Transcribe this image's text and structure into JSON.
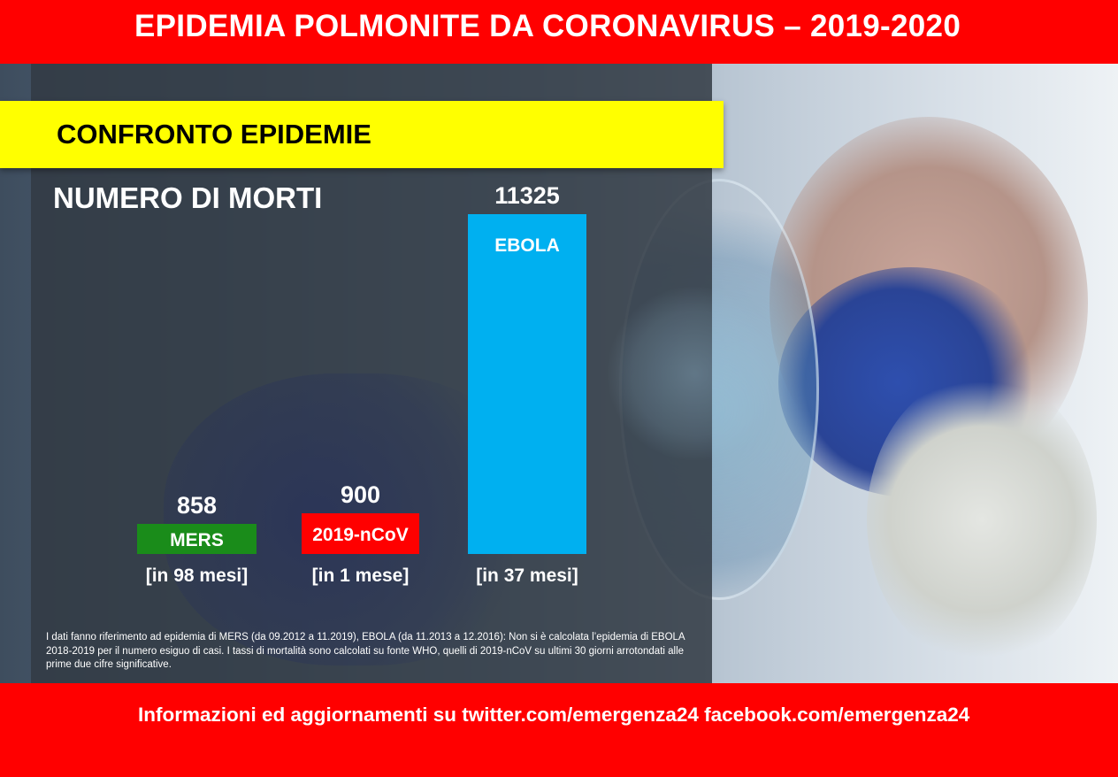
{
  "title": "EPIDEMIA POLMONITE DA CORONAVIRUS – 2019-2020",
  "subtitle": "CONFRONTO EPIDEMIE",
  "section_heading": "NUMERO DI MORTI",
  "footnote": "I dati fanno riferimento ad epidemia di MERS (da 09.2012 a 11.2019), EBOLA (da 11.2013 a 12.2016): Non si è calcolata l’epidemia di EBOLA 2018-2019 per il numero esiguo di casi.  I tassi di mortalità sono calcolati su fonte WHO, quelli di 2019-nCoV su ultimi 30 giorni arrotondati alle prime due cifre significative.",
  "footer": "Informazioni ed aggiornamenti su twitter.com/emergenza24  facebook.com/emergenza24",
  "colors": {
    "banner": "#ff0000",
    "subtitle_bar": "#ffff00",
    "mers": "#1a8c1a",
    "ncov": "#ff0000",
    "ebola": "#00b0f0"
  },
  "chart_data": {
    "type": "bar",
    "categories": [
      "MERS",
      "2019-nCoV",
      "EBOLA"
    ],
    "values": [
      858,
      900,
      11325
    ],
    "value_labels": [
      "858",
      "900",
      "11325"
    ],
    "periods": [
      "[in 98 mesi]",
      "[in 1 mese]",
      "[in 37 mesi]"
    ],
    "colors": [
      "#1a8c1a",
      "#ff0000",
      "#00b0f0"
    ],
    "ylim": [
      0,
      11325
    ],
    "grid": false
  }
}
